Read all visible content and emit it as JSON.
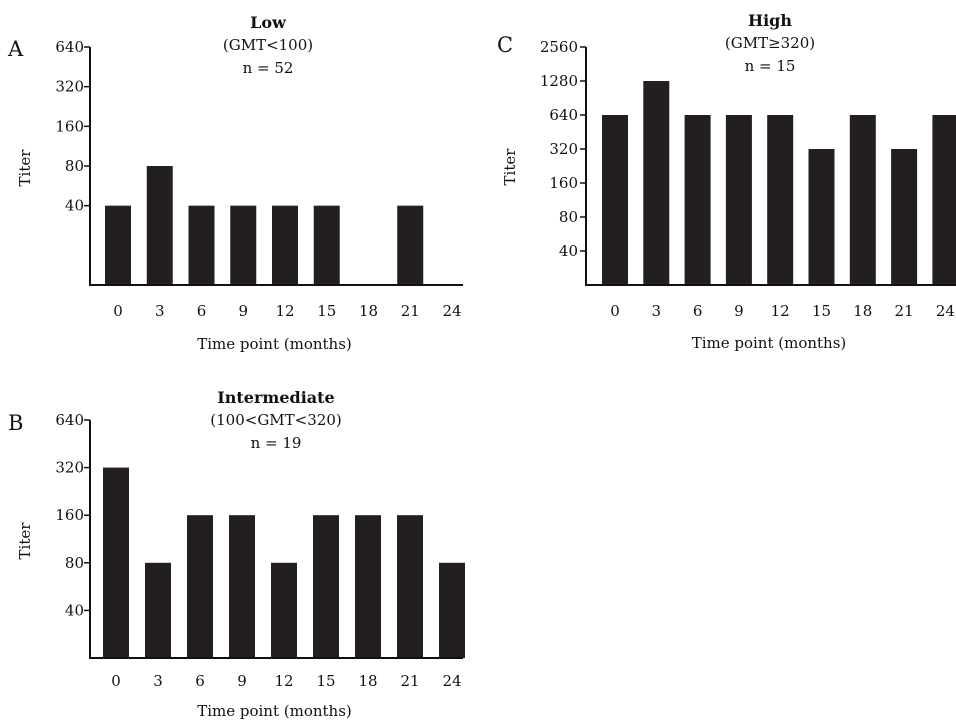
{
  "chart_data": [
    {
      "type": "bar",
      "panel_letter": "A",
      "title": "Low",
      "subtitle": "(GMT<100)",
      "n_label": "n = 52",
      "xlabel": "Time point (months)",
      "ylabel": "Titer",
      "scale": "log2",
      "categories": [
        "0",
        "3",
        "6",
        "9",
        "12",
        "15",
        "18",
        "21",
        "24"
      ],
      "values": [
        40,
        80,
        40,
        40,
        40,
        40,
        10,
        40,
        10
      ],
      "yticks": [
        40,
        80,
        160,
        320,
        640
      ],
      "ylim": [
        10,
        640
      ],
      "bar_color": "#231f20",
      "grid": false
    },
    {
      "type": "bar",
      "panel_letter": "B",
      "title": "Intermediate",
      "subtitle": "(100<GMT<320)",
      "n_label": "n = 19",
      "xlabel": "Time point (months)",
      "ylabel": "Titer",
      "scale": "log2",
      "categories": [
        "0",
        "3",
        "6",
        "9",
        "12",
        "15",
        "18",
        "21",
        "24"
      ],
      "values": [
        320,
        80,
        160,
        160,
        80,
        160,
        160,
        160,
        80
      ],
      "yticks": [
        40,
        80,
        160,
        320,
        640
      ],
      "ylim": [
        20,
        640
      ],
      "bar_color": "#231f20",
      "grid": false
    },
    {
      "type": "bar",
      "panel_letter": "C",
      "title": "High",
      "subtitle": "(GMT≥320)",
      "n_label": "n = 15",
      "xlabel": "Time point (months)",
      "ylabel": "Titer",
      "scale": "log2",
      "categories": [
        "0",
        "3",
        "6",
        "9",
        "12",
        "15",
        "18",
        "21",
        "24"
      ],
      "values": [
        640,
        1280,
        640,
        640,
        640,
        320,
        640,
        320,
        640
      ],
      "yticks": [
        40,
        80,
        160,
        320,
        640,
        1280,
        2560
      ],
      "ylim": [
        20,
        2560
      ],
      "bar_color": "#231f20",
      "grid": false
    }
  ]
}
